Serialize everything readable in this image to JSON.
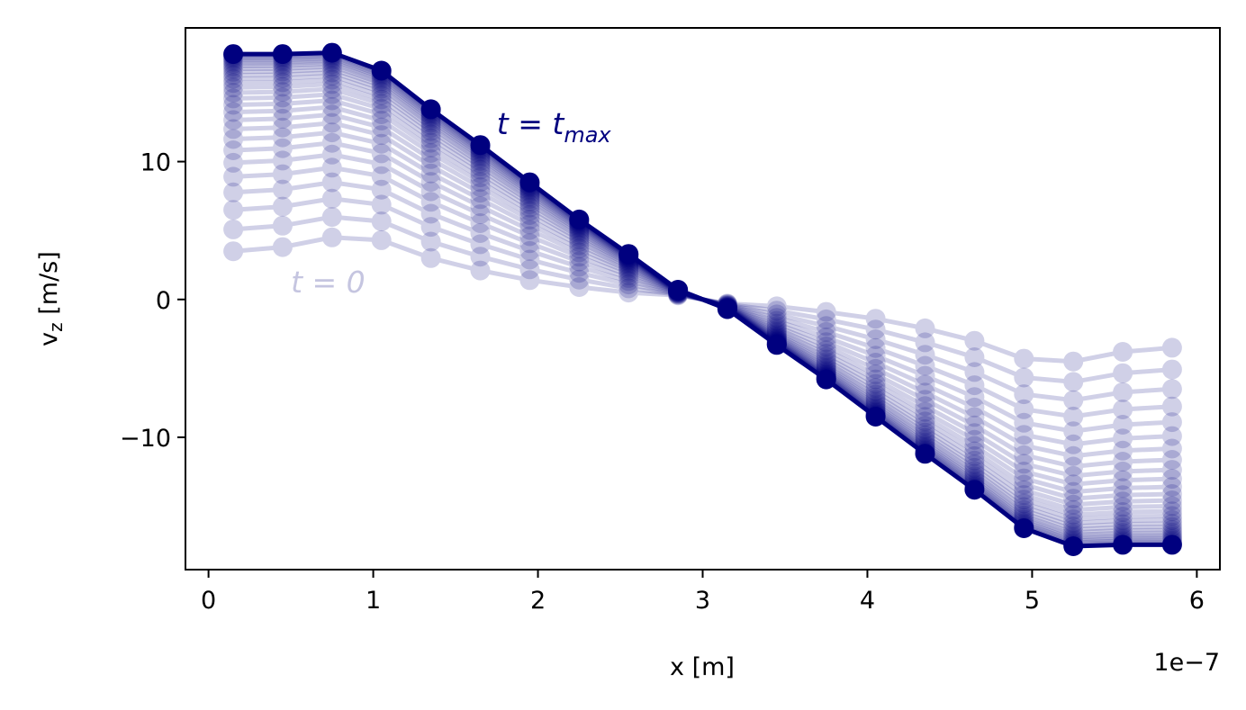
{
  "chart_data": {
    "type": "line",
    "xlabel": "x [m]",
    "ylabel": "v_z [m/s]",
    "x_offset_text": "1e−7",
    "xlim": [
      -0.14,
      6.14
    ],
    "ylim": [
      -19.6,
      19.7
    ],
    "x_ticks": [
      0,
      1,
      2,
      3,
      4,
      5,
      6
    ],
    "x_tick_labels": [
      "0",
      "1",
      "2",
      "3",
      "4",
      "5",
      "6"
    ],
    "y_ticks": [
      -10,
      0,
      10
    ],
    "y_tick_labels": [
      "−10",
      "0",
      "10"
    ],
    "grid": false,
    "series_color": "#00007f",
    "x": [
      0.15,
      0.45,
      0.75,
      1.05,
      1.35,
      1.65,
      1.95,
      2.25,
      2.55,
      2.85,
      3.15,
      3.45,
      3.75,
      4.05,
      4.35,
      4.65,
      4.95,
      5.25,
      5.55,
      5.85
    ],
    "series": [
      {
        "values": [
          3.5,
          3.8,
          4.5,
          4.3,
          3.0,
          2.1,
          1.4,
          0.9,
          0.5,
          0.3,
          -0.3,
          -0.5,
          -0.9,
          -1.4,
          -2.1,
          -3.0,
          -4.3,
          -4.5,
          -3.8,
          -3.5
        ]
      },
      {
        "values": [
          17.8,
          17.8,
          17.9,
          16.6,
          13.8,
          11.2,
          8.5,
          5.8,
          3.3,
          0.7,
          -0.7,
          -3.3,
          -5.8,
          -8.5,
          -11.2,
          -13.8,
          -16.6,
          -17.9,
          -17.8,
          -17.8
        ]
      }
    ],
    "annotations": [
      {
        "text_main": "t = t",
        "text_sub": "max",
        "x": 1.75,
        "y": 12.0,
        "color": "#00007f"
      },
      {
        "text_main": "t = 0",
        "x": 0.5,
        "y": 0.5,
        "color": "#c5c5e0"
      }
    ]
  }
}
